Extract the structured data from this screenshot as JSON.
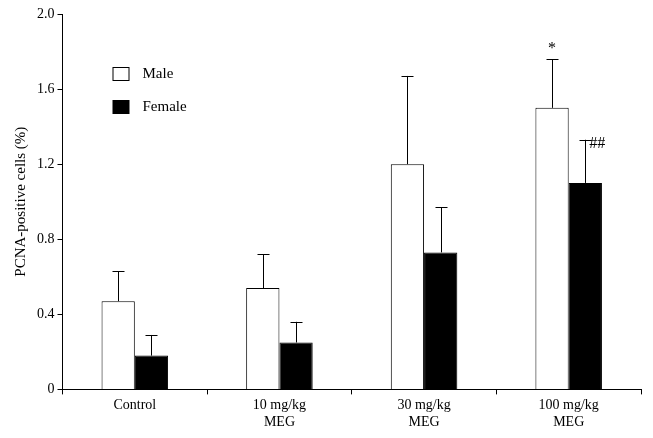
{
  "chart_data": {
    "type": "bar",
    "y_label": "PCNA-positive cells (%)",
    "categories": [
      "Control",
      "10 mg/kg MEG",
      "30 mg/kg MEG",
      "100 mg/kg MEG"
    ],
    "series": [
      {
        "name": "Male",
        "color": "#ffffff",
        "values": [
          0.47,
          0.54,
          1.2,
          1.5
        ],
        "errors": [
          0.16,
          0.18,
          0.47,
          0.26
        ]
      },
      {
        "name": "Female",
        "color": "#000000",
        "values": [
          0.18,
          0.25,
          0.73,
          1.1
        ],
        "errors": [
          0.11,
          0.11,
          0.24,
          0.23
        ]
      }
    ],
    "annotations": [
      {
        "category": "100 mg/kg MEG",
        "series": "Male",
        "text": "*"
      },
      {
        "category": "100 mg/kg MEG",
        "series": "Female",
        "text": "##"
      }
    ],
    "ylim": [
      0,
      2
    ],
    "yticks": [
      0,
      0.4,
      0.8,
      1.2,
      1.6,
      {
        "value": 2,
        "label": "2.0"
      }
    ],
    "grid": false,
    "legend": "upper left"
  }
}
